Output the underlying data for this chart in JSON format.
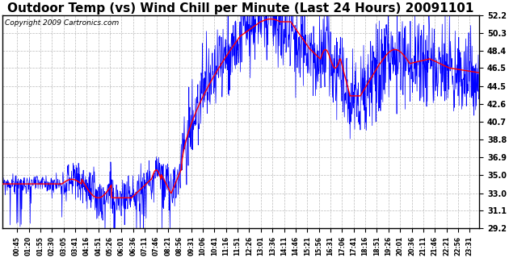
{
  "title": "Outdoor Temp (vs) Wind Chill per Minute (Last 24 Hours) 20091101",
  "copyright": "Copyright 2009 Cartronics.com",
  "yticks": [
    29.2,
    31.1,
    33.0,
    35.0,
    36.9,
    38.8,
    40.7,
    42.6,
    44.5,
    46.5,
    48.4,
    50.3,
    52.2
  ],
  "ymin": 29.2,
  "ymax": 52.2,
  "bg_color": "#ffffff",
  "plot_bg_color": "#ffffff",
  "grid_color": "#bbbbbb",
  "blue_color": "#0000ff",
  "red_color": "#ff0000",
  "title_fontsize": 11,
  "copyright_fontsize": 6.5,
  "x_tick_labels": [
    "00:45",
    "01:20",
    "01:55",
    "02:30",
    "03:05",
    "03:41",
    "04:16",
    "04:51",
    "05:26",
    "06:01",
    "06:36",
    "07:11",
    "07:46",
    "08:21",
    "08:56",
    "09:31",
    "10:06",
    "10:41",
    "11:16",
    "11:51",
    "12:26",
    "13:01",
    "13:36",
    "14:11",
    "14:46",
    "15:21",
    "15:56",
    "16:31",
    "17:06",
    "17:41",
    "18:16",
    "18:51",
    "19:26",
    "20:01",
    "20:36",
    "21:11",
    "21:46",
    "22:21",
    "22:56",
    "23:31"
  ]
}
